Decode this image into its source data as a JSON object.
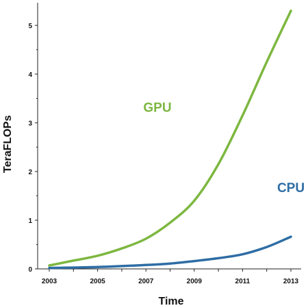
{
  "chart_data": {
    "type": "line",
    "xlabel": "Time",
    "ylabel": "TeraFLOPs",
    "xlim": [
      2003,
      2013
    ],
    "ylim": [
      0,
      5
    ],
    "x_ticks": [
      "2003",
      "2005",
      "2007",
      "2009",
      "2011",
      "2013"
    ],
    "y_ticks": [
      "0",
      "1",
      "2",
      "3",
      "4",
      "5"
    ],
    "grid": false,
    "legend": "none",
    "series": [
      {
        "name": "GPU",
        "color": "#7db740",
        "x": [
          2003,
          2004,
          2005,
          2006,
          2007,
          2008,
          2009,
          2010,
          2011,
          2012,
          2013
        ],
        "y": [
          0.07,
          0.17,
          0.27,
          0.42,
          0.62,
          0.95,
          1.4,
          2.15,
          3.15,
          4.25,
          5.3
        ]
      },
      {
        "name": "CPU",
        "color": "#2e6da4",
        "x": [
          2003,
          2005,
          2007,
          2008,
          2009,
          2010,
          2011,
          2012,
          2013
        ],
        "y": [
          0.02,
          0.04,
          0.08,
          0.11,
          0.16,
          0.22,
          0.3,
          0.45,
          0.66
        ]
      }
    ]
  }
}
